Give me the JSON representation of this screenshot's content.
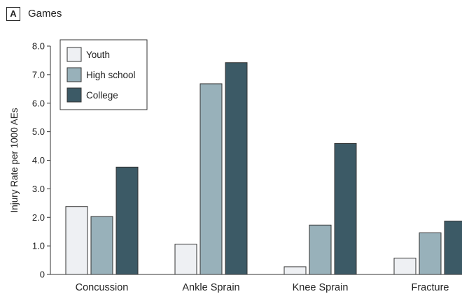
{
  "panel": {
    "label": "A",
    "title": "Games"
  },
  "chart_data": {
    "type": "bar",
    "title": "Games",
    "ylabel": "Injury Rate per 1000 AEs",
    "xlabel": "",
    "ylim": [
      0,
      8.0
    ],
    "yticks": [
      0,
      1.0,
      2.0,
      3.0,
      4.0,
      5.0,
      6.0,
      7.0,
      8.0
    ],
    "ytick_labels": [
      "0",
      "1.0",
      "2.0",
      "3.0",
      "4.0",
      "5.0",
      "6.0",
      "7.0",
      "8.0"
    ],
    "categories": [
      "Concussion",
      "Ankle Sprain",
      "Knee Sprain",
      "Fracture"
    ],
    "series": [
      {
        "name": "Youth",
        "color": "#eef0f3",
        "values": [
          2.38,
          1.06,
          0.27,
          0.57
        ]
      },
      {
        "name": "High school",
        "color": "#98b1ba",
        "values": [
          2.03,
          6.68,
          1.73,
          1.46
        ]
      },
      {
        "name": "College",
        "color": "#3c5a66",
        "values": [
          3.76,
          7.42,
          4.59,
          1.87
        ]
      }
    ],
    "legend": {
      "placement": "top-left"
    },
    "grid": false
  }
}
